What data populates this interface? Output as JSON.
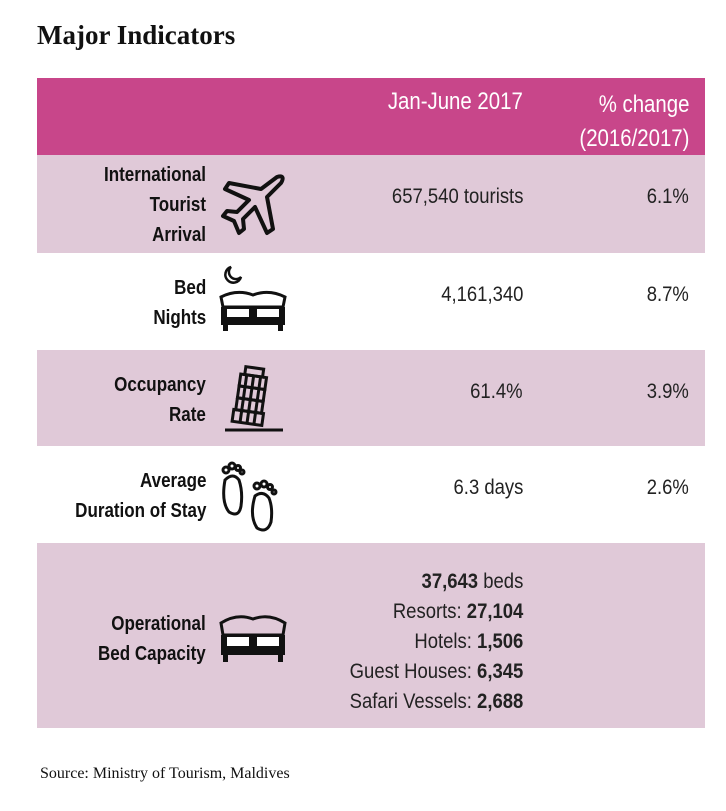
{
  "title": "Major Indicators",
  "header": {
    "col1": "Jan-June 2017",
    "col2_line1": "% change",
    "col2_line2": "(2016/2017)"
  },
  "colors": {
    "header": "#c8468a",
    "shaded_row": "#e0c9d8"
  },
  "rows": [
    {
      "label_lines": [
        "International",
        "Tourist",
        "Arrival"
      ],
      "icon": "airplane-icon",
      "value": "657,540 tourists",
      "change": "6.1%"
    },
    {
      "label_lines": [
        "Bed",
        "Nights"
      ],
      "icon": "bed-moon-icon",
      "value": "4,161,340",
      "change": "8.7%"
    },
    {
      "label_lines": [
        "Occupancy",
        "Rate"
      ],
      "icon": "leaning-tower-icon",
      "value": "61.4%",
      "change": "3.9%"
    },
    {
      "label_lines": [
        "Average",
        "Duration of Stay"
      ],
      "icon": "footprints-icon",
      "value": "6.3 days",
      "change": "2.6%"
    },
    {
      "label_lines": [
        "Operational",
        "Bed Capacity"
      ],
      "icon": "bed-icon",
      "total_value": "37,643",
      "total_unit": "beds",
      "breakdown": [
        {
          "label": "Resorts:",
          "value": "27,104"
        },
        {
          "label": "Hotels:",
          "value": "1,506"
        },
        {
          "label": "Guest Houses:",
          "value": "6,345"
        },
        {
          "label": "Safari Vessels:",
          "value": "2,688"
        }
      ]
    }
  ],
  "source": "Source: Ministry of Tourism, Maldives"
}
